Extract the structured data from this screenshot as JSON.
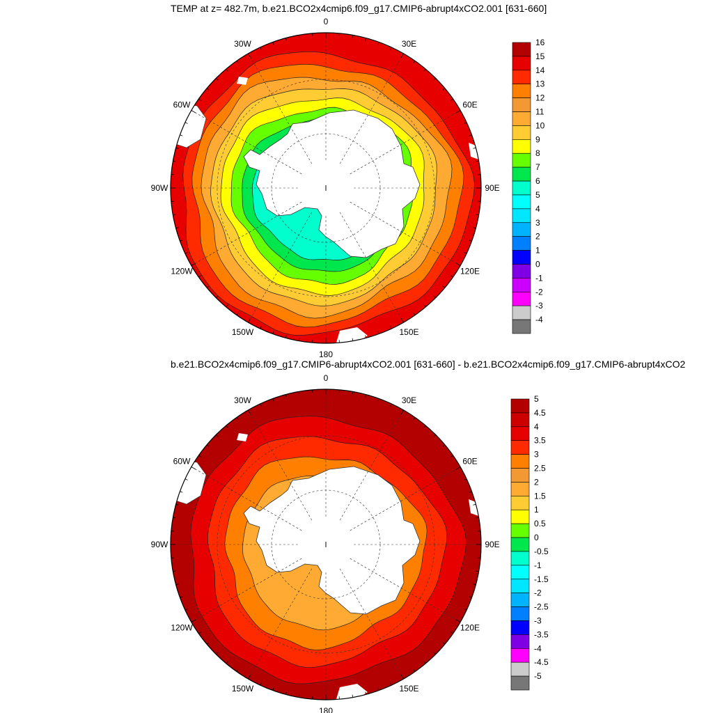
{
  "panels": [
    {
      "title": "TEMP at z= 482.7m, b.e21.BCO2x4cmip6.f09_g17.CMIP6-abrupt4xCO2.001 [631-660]",
      "lon_labels": [
        "0",
        "30E",
        "60E",
        "90E",
        "120E",
        "150E",
        "180",
        "150W",
        "120W",
        "90W",
        "60W",
        "30W"
      ],
      "colorbar": {
        "labels": [
          "16",
          "15",
          "14",
          "13",
          "12",
          "11",
          "10",
          "9",
          "8",
          "7",
          "6",
          "5",
          "4",
          "3",
          "2",
          "1",
          "0",
          "-1",
          "-2",
          "-3",
          "-4"
        ],
        "colors": [
          "#b30000",
          "#e60000",
          "#ff2a00",
          "#ff8000",
          "#f29933",
          "#ffaa33",
          "#ffcc33",
          "#ffff00",
          "#66ff00",
          "#00e64d",
          "#00ffcc",
          "#00ffff",
          "#00e6ff",
          "#00b3ff",
          "#0080ff",
          "#0000ff",
          "#8000e6",
          "#cc00ff",
          "#ff00ff",
          "#cccccc",
          "#777777"
        ]
      },
      "layers": [
        "#e60000",
        "#ff2a00",
        "#ff8000",
        "#ffaa33",
        "#ffcc33",
        "#ffff00",
        "#66ff00",
        "#00e64d",
        "#00ffcc"
      ]
    },
    {
      "title": "b.e21.BCO2x4cmip6.f09_g17.CMIP6-abrupt4xCO2.001 [631-660] - b.e21.BCO2x4cmip6.f09_g17.CMIP6-abrupt4xCO2",
      "lon_labels": [
        "0",
        "30E",
        "60E",
        "90E",
        "120E",
        "150E",
        "180",
        "150W",
        "120W",
        "90W",
        "60W",
        "30W"
      ],
      "colorbar": {
        "labels": [
          "5",
          "4.5",
          "4",
          "3.5",
          "3",
          "2.5",
          "2",
          "1.5",
          "1",
          "0.5",
          "0",
          "-0.5",
          "-1",
          "-1.5",
          "-2",
          "-2.5",
          "-3",
          "-3.5",
          "-4",
          "-4.5",
          "-5"
        ],
        "colors": [
          "#b30000",
          "#cc0000",
          "#e60000",
          "#ff2a00",
          "#ff8000",
          "#f29933",
          "#ffaa33",
          "#ffcc33",
          "#ffff00",
          "#66ff00",
          "#00e64d",
          "#00ffcc",
          "#00ffff",
          "#00e6ff",
          "#00b3ff",
          "#0080ff",
          "#0000ff",
          "#8000e6",
          "#ff00ff",
          "#cccccc",
          "#777777"
        ]
      },
      "layers": [
        "#b30000",
        "#e60000",
        "#ff2a00",
        "#ff8000",
        "#ffaa33"
      ]
    }
  ]
}
